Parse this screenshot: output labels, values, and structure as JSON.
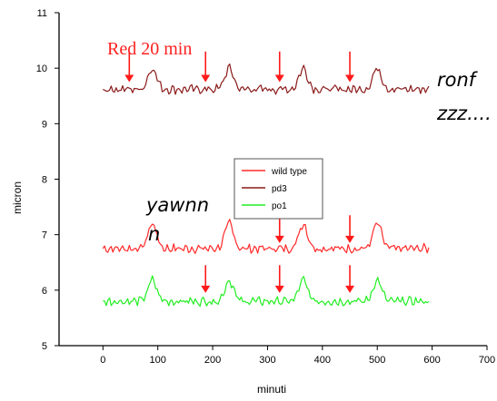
{
  "chart_data": {
    "type": "line",
    "xlabel": "minuti",
    "ylabel": "micron",
    "xlim": [
      -80,
      700
    ],
    "ylim": [
      5,
      11
    ],
    "x_ticks": [
      0,
      100,
      200,
      300,
      400,
      500,
      600,
      700
    ],
    "y_ticks": [
      5,
      6,
      7,
      8,
      9,
      10,
      11
    ],
    "x_tick_labels": [
      "0",
      "100",
      "200",
      "300",
      "400",
      "500",
      "600",
      "700"
    ],
    "y_tick_labels": [
      "5",
      "6",
      "7",
      "8",
      "9",
      "10",
      "11"
    ],
    "grid": false,
    "legend_position": "center",
    "series": [
      {
        "name": "wild type",
        "color": "#ff2a2a",
        "baseline": 6.75,
        "peak_height": 0.45,
        "peaks_x": [
          90,
          230,
          365,
          500
        ],
        "x_range": [
          0,
          595
        ]
      },
      {
        "name": "pd3",
        "color": "#8b1a1a",
        "baseline": 9.62,
        "peak_height": 0.38,
        "peaks_x": [
          90,
          230,
          365,
          500
        ],
        "x_range": [
          0,
          595
        ]
      },
      {
        "name": "po1",
        "color": "#22ee22",
        "baseline": 5.8,
        "peak_height": 0.38,
        "peaks_x": [
          90,
          230,
          365,
          500
        ],
        "x_range": [
          0,
          595
        ]
      }
    ],
    "stimulus_arrows": [
      {
        "x": 48,
        "y_from": 10.3,
        "y_to": 9.75
      },
      {
        "x": 187,
        "y_from": 10.3,
        "y_to": 9.75
      },
      {
        "x": 322,
        "y_from": 10.3,
        "y_to": 9.75
      },
      {
        "x": 450,
        "y_from": 10.3,
        "y_to": 9.75
      },
      {
        "x": 322,
        "y_from": 7.35,
        "y_to": 6.85
      },
      {
        "x": 450,
        "y_from": 7.35,
        "y_to": 6.85
      },
      {
        "x": 187,
        "y_from": 6.45,
        "y_to": 5.95
      },
      {
        "x": 322,
        "y_from": 6.45,
        "y_to": 5.95
      },
      {
        "x": 450,
        "y_from": 6.45,
        "y_to": 5.95
      }
    ],
    "annotations": {
      "stimulus": "Red 20 min",
      "snore_line1": "ronf",
      "snore_line2": "zzz....",
      "yawn_line1": "yawnn",
      "yawn_line2": "n"
    }
  }
}
